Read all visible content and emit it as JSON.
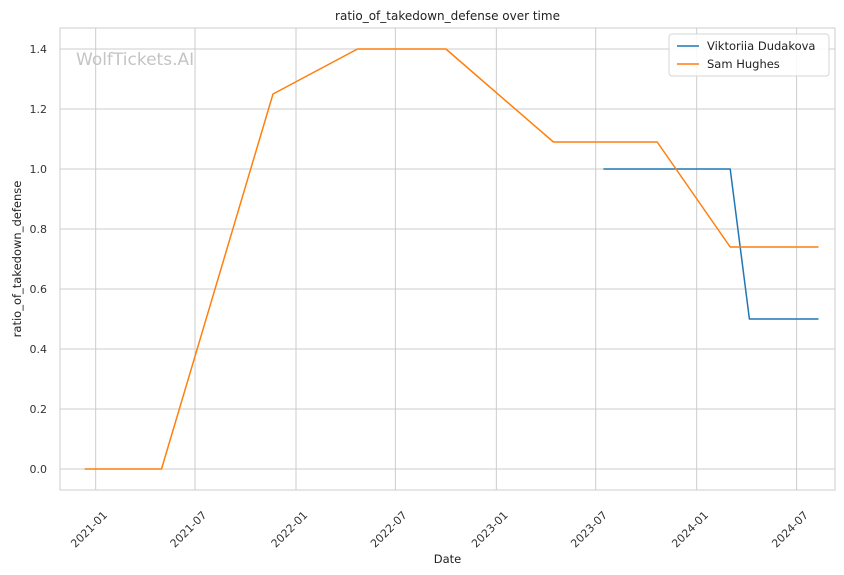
{
  "chart_data": {
    "type": "line",
    "title": "ratio_of_takedown_defense over time",
    "xlabel": "Date",
    "ylabel": "ratio_of_takedown_defense",
    "watermark": "WolfTickets.AI",
    "xlim": [
      "2020-10-28",
      "2024-09-09"
    ],
    "ylim": [
      -0.07,
      1.47
    ],
    "x_ticks": [
      "2021-01-01",
      "2021-07-01",
      "2022-01-01",
      "2022-07-01",
      "2023-01-01",
      "2023-07-01",
      "2024-01-01",
      "2024-07-01"
    ],
    "x_tick_labels": [
      "2021-01",
      "2021-07",
      "2022-01",
      "2022-07",
      "2023-01",
      "2023-07",
      "2024-01",
      "2024-07"
    ],
    "y_ticks": [
      0.0,
      0.2,
      0.4,
      0.6,
      0.8,
      1.0,
      1.2,
      1.4
    ],
    "y_tick_labels": [
      "0.0",
      "0.2",
      "0.4",
      "0.6",
      "0.8",
      "1.0",
      "1.2",
      "1.4"
    ],
    "grid": true,
    "legend_position": "top-right",
    "series": [
      {
        "name": "Viktoriia Dudakova",
        "color": "#1f77b4",
        "x": [
          "2023-07-15",
          "2024-03-02",
          "2024-04-06",
          "2024-08-10"
        ],
        "y": [
          1.0,
          1.0,
          0.5,
          0.5
        ]
      },
      {
        "name": "Sam Hughes",
        "color": "#ff7f0e",
        "x": [
          "2020-12-12",
          "2021-05-01",
          "2021-11-20",
          "2022-04-23",
          "2022-10-01",
          "2023-04-15",
          "2023-10-21",
          "2024-03-02",
          "2024-08-10"
        ],
        "y": [
          0.0,
          0.0,
          1.25,
          1.4,
          1.4,
          1.09,
          1.09,
          0.74,
          0.74
        ]
      }
    ]
  }
}
